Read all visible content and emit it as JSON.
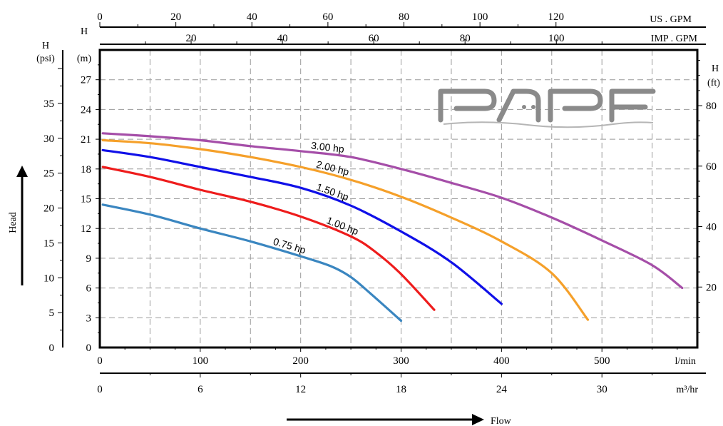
{
  "chart_data": {
    "type": "line",
    "x_unit": "l/min",
    "y_unit": "m",
    "xlim": [
      0,
      595
    ],
    "ylim": [
      0,
      30
    ],
    "grid": true,
    "series": [
      {
        "name": "0.75 hp",
        "color": "#3a86c0",
        "x": [
          3,
          50,
          100,
          150,
          200,
          230,
          250,
          270,
          300
        ],
        "y": [
          14.4,
          13.4,
          12.0,
          10.7,
          9.2,
          8.2,
          7.1,
          5.4,
          2.7
        ]
      },
      {
        "name": "1.00 hp",
        "color": "#ee1c1c",
        "x": [
          3,
          50,
          100,
          150,
          200,
          250,
          275,
          300,
          333
        ],
        "y": [
          18.2,
          17.2,
          15.9,
          14.7,
          13.2,
          11.2,
          9.6,
          7.4,
          3.8
        ]
      },
      {
        "name": "1.50 hp",
        "color": "#1010e8",
        "x": [
          3,
          50,
          100,
          150,
          200,
          250,
          300,
          350,
          400
        ],
        "y": [
          19.9,
          19.2,
          18.2,
          17.2,
          16.1,
          14.3,
          11.7,
          8.6,
          4.4
        ]
      },
      {
        "name": "2.00 hp",
        "color": "#f5a02a",
        "x": [
          3,
          50,
          100,
          150,
          200,
          250,
          300,
          350,
          400,
          450,
          486
        ],
        "y": [
          20.9,
          20.6,
          20.0,
          19.2,
          18.2,
          16.9,
          15.2,
          13.1,
          10.7,
          7.5,
          2.8
        ]
      },
      {
        "name": "3.00 hp",
        "color": "#a54ea8",
        "x": [
          3,
          50,
          100,
          150,
          200,
          250,
          300,
          350,
          400,
          450,
          500,
          550,
          580
        ],
        "y": [
          21.6,
          21.3,
          20.9,
          20.3,
          19.8,
          19.2,
          18.0,
          16.6,
          15.1,
          13.1,
          10.8,
          8.3,
          6.0
        ]
      }
    ],
    "axes": {
      "us_gpm": {
        "label": "US . GPM",
        "ticks": [
          0,
          20,
          40,
          60,
          80,
          100,
          120
        ],
        "per_lpm": 0.26417
      },
      "imp_gpm": {
        "label": "IMP . GPM",
        "ticks": [
          20,
          40,
          60,
          80,
          100
        ],
        "per_lpm": 0.21997
      },
      "lpm": {
        "label": "l/min",
        "ticks": [
          0,
          100,
          200,
          300,
          400,
          500
        ]
      },
      "m3hr": {
        "label": "m³/hr",
        "ticks": [
          0,
          6,
          12,
          18,
          24,
          30
        ],
        "per_lpm": 0.06
      },
      "head_psi": {
        "label_top": "H",
        "label_bottom": "(psi)",
        "ticks": [
          0,
          5,
          10,
          15,
          20,
          25,
          30,
          35
        ],
        "per_m": 1.4223
      },
      "head_m": {
        "label_top": "H",
        "label_bottom": "(m)",
        "ticks": [
          0,
          3,
          6,
          9,
          12,
          15,
          18,
          21,
          24,
          27
        ]
      },
      "head_ft": {
        "label_top": "H",
        "label_bottom": "(ft)",
        "ticks": [
          20,
          40,
          60,
          80
        ],
        "per_m": 3.2808
      }
    },
    "flow_label": "Flow",
    "head_label": "Head"
  },
  "logo": {
    "text": "PAPF",
    "color": "#8a8a8a"
  }
}
